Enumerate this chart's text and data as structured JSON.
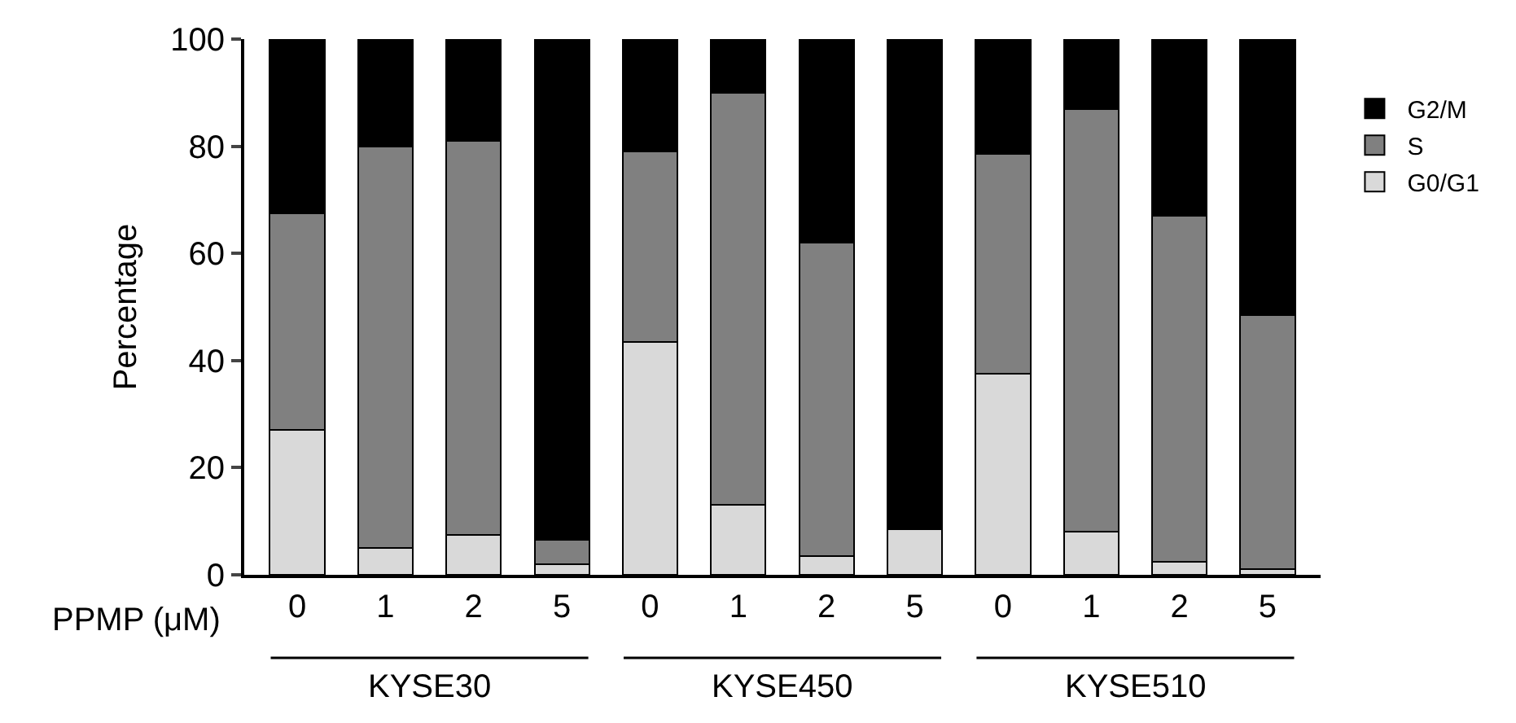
{
  "chart_data": {
    "type": "bar",
    "stacked": true,
    "ylabel": "Percentage",
    "xlabel": "PPMP (μM)",
    "categories": [
      "0",
      "1",
      "2",
      "5",
      "0",
      "1",
      "2",
      "5",
      "0",
      "1",
      "2",
      "5"
    ],
    "series": [
      {
        "name": "G0/G1",
        "color": "#d9d9d9",
        "values": [
          27,
          5,
          7.5,
          2,
          43.5,
          13,
          3.5,
          8.5,
          37.5,
          8,
          2.5,
          1
        ]
      },
      {
        "name": "S",
        "color": "#808080",
        "values": [
          40.5,
          75,
          73.5,
          4.5,
          35.5,
          77,
          58.5,
          0,
          41,
          79,
          64.5,
          47.5
        ]
      },
      {
        "name": "G2/M",
        "color": "#000000",
        "values": [
          32.5,
          20,
          19,
          93.5,
          21,
          10,
          38,
          91.5,
          21.5,
          13,
          33,
          51.5
        ]
      }
    ],
    "annotations": [
      "KYSE30",
      "KYSE450",
      "KYSE510"
    ],
    "ylim": [
      0,
      100
    ],
    "yticks": [
      0,
      20,
      40,
      60,
      80,
      100
    ],
    "legend": "right"
  }
}
